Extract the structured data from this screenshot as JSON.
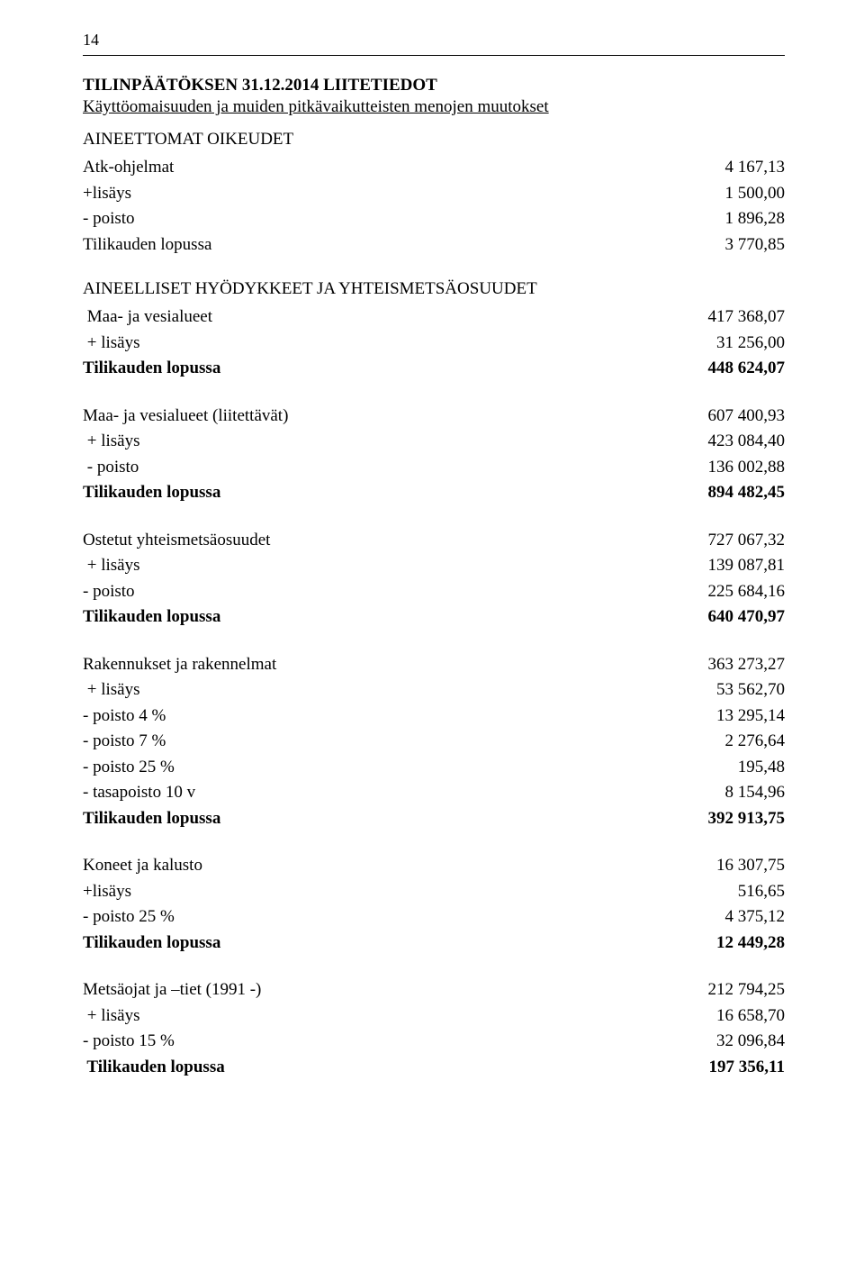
{
  "page_number": "14",
  "title": "TILINPÄÄTÖKSEN 31.12.2014 LIITETIEDOT",
  "subtitle": "Käyttöomaisuuden ja muiden pitkävaikutteisten menojen muutokset",
  "sections": [
    {
      "heading": "AINEETTOMAT OIKEUDET",
      "rows": [
        {
          "label": "Atk-ohjelmat",
          "value": "4 167,13"
        },
        {
          "label": "+lisäys",
          "value": "1 500,00"
        },
        {
          "label": "- poisto",
          "value": "1 896,28"
        },
        {
          "label": "Tilikauden lopussa",
          "value": "3 770,85"
        }
      ]
    },
    {
      "heading": "AINEELLISET HYÖDYKKEET JA YHTEISMETSÄOSUUDET",
      "rows": [
        {
          "label": " Maa- ja vesialueet",
          "value": "417 368,07"
        },
        {
          "label": " + lisäys",
          "value": "31 256,00"
        },
        {
          "label": "Tilikauden lopussa",
          "value": "448 624,07",
          "bold": true
        }
      ]
    },
    {
      "heading": "",
      "rows": [
        {
          "label": "Maa- ja vesialueet (liitettävät)",
          "value": "607 400,93"
        },
        {
          "label": " + lisäys",
          "value": "423 084,40"
        },
        {
          "label": " - poisto",
          "value": "136 002,88"
        },
        {
          "label": "Tilikauden lopussa",
          "value": "894 482,45",
          "bold": true
        }
      ]
    },
    {
      "heading": "",
      "rows": [
        {
          "label": "Ostetut yhteismetsäosuudet",
          "value": "727 067,32"
        },
        {
          "label": " + lisäys",
          "value": "139 087,81"
        },
        {
          "label": "- poisto",
          "value": "225 684,16"
        },
        {
          "label": "Tilikauden lopussa",
          "value": "640 470,97",
          "bold": true
        }
      ]
    },
    {
      "heading": "",
      "rows": [
        {
          "label": "Rakennukset ja rakennelmat",
          "value": "363 273,27"
        },
        {
          "label": " + lisäys",
          "value": "53 562,70"
        },
        {
          "label": "- poisto 4 %",
          "value": "13 295,14"
        },
        {
          "label": "- poisto 7 %",
          "value": "2 276,64"
        },
        {
          "label": "- poisto 25 %",
          "value": "195,48"
        },
        {
          "label": "- tasapoisto 10 v",
          "value": "8 154,96"
        },
        {
          "label": "Tilikauden lopussa",
          "value": "392 913,75",
          "bold": true
        }
      ]
    },
    {
      "heading": "",
      "rows": [
        {
          "label": "Koneet ja kalusto",
          "value": "16 307,75"
        },
        {
          "label": "+lisäys",
          "value": "516,65"
        },
        {
          "label": "- poisto 25 %",
          "value": "4 375,12"
        },
        {
          "label": "Tilikauden lopussa",
          "value": "12 449,28",
          "bold": true
        }
      ]
    },
    {
      "heading": "",
      "rows": [
        {
          "label": "Metsäojat ja –tiet (1991 -)",
          "value": "212 794,25"
        },
        {
          "label": " + lisäys",
          "value": "16 658,70"
        },
        {
          "label": "- poisto 15 %",
          "value": "32 096,84"
        },
        {
          "label": " Tilikauden lopussa",
          "value": "197 356,11",
          "bold": true
        }
      ]
    }
  ]
}
